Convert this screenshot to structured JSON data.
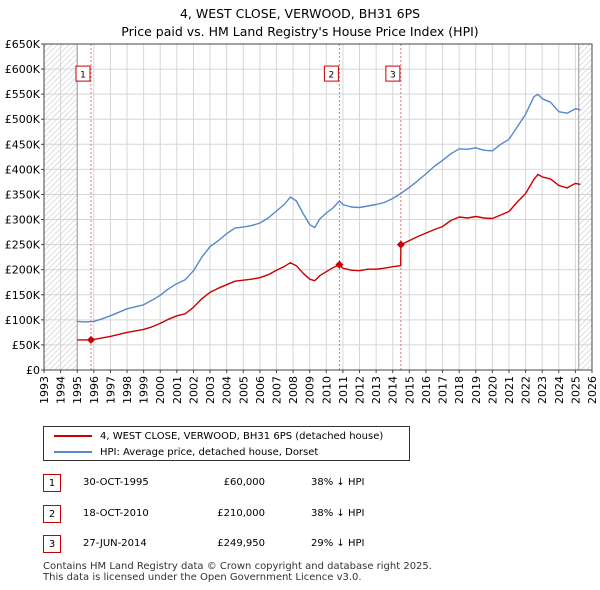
{
  "title_line1": "4, WEST CLOSE, VERWOOD, BH31 6PS",
  "title_line2": "Price paid vs. HM Land Registry's House Price Index (HPI)",
  "chart_data": {
    "type": "line",
    "title": "4, WEST CLOSE, VERWOOD, BH31 6PS — Price paid vs. HM Land Registry's House Price Index (HPI)",
    "xlim": [
      1993,
      2026
    ],
    "ylim": [
      0,
      650000
    ],
    "x_ticks": [
      1993,
      1994,
      1995,
      1996,
      1997,
      1998,
      1999,
      2000,
      2001,
      2002,
      2003,
      2004,
      2005,
      2006,
      2007,
      2008,
      2009,
      2010,
      2011,
      2012,
      2013,
      2014,
      2015,
      2016,
      2017,
      2018,
      2019,
      2020,
      2021,
      2022,
      2023,
      2024,
      2025,
      2026
    ],
    "y_ticks": [
      {
        "value": 0,
        "label": "£0"
      },
      {
        "value": 50000,
        "label": "£50K"
      },
      {
        "value": 100000,
        "label": "£100K"
      },
      {
        "value": 150000,
        "label": "£150K"
      },
      {
        "value": 200000,
        "label": "£200K"
      },
      {
        "value": 250000,
        "label": "£250K"
      },
      {
        "value": 300000,
        "label": "£300K"
      },
      {
        "value": 350000,
        "label": "£350K"
      },
      {
        "value": 400000,
        "label": "£400K"
      },
      {
        "value": 450000,
        "label": "£450K"
      },
      {
        "value": 500000,
        "label": "£500K"
      },
      {
        "value": 550000,
        "label": "£550K"
      },
      {
        "value": 600000,
        "label": "£600K"
      },
      {
        "value": 650000,
        "label": "£650K"
      }
    ],
    "hatched_ranges": [
      [
        1993,
        1995.0
      ],
      [
        2025.2,
        2026
      ]
    ],
    "series": [
      {
        "name": "4, WEST CLOSE, VERWOOD, BH31 6PS (detached house)",
        "color": "#cc0000",
        "points": [
          [
            1995.0,
            60000
          ],
          [
            1995.83,
            60000
          ],
          [
            1996.5,
            64000
          ],
          [
            1997.0,
            67000
          ],
          [
            1997.5,
            71000
          ],
          [
            1998.0,
            75000
          ],
          [
            1998.5,
            78000
          ],
          [
            1999.0,
            81000
          ],
          [
            1999.5,
            86000
          ],
          [
            2000.0,
            93000
          ],
          [
            2000.5,
            101000
          ],
          [
            2001.0,
            108000
          ],
          [
            2001.5,
            112000
          ],
          [
            2002.0,
            125000
          ],
          [
            2002.5,
            142000
          ],
          [
            2003.0,
            155000
          ],
          [
            2003.5,
            163000
          ],
          [
            2004.0,
            170000
          ],
          [
            2004.5,
            177000
          ],
          [
            2005.0,
            179000
          ],
          [
            2005.5,
            181000
          ],
          [
            2006.0,
            184000
          ],
          [
            2006.5,
            190000
          ],
          [
            2007.0,
            199000
          ],
          [
            2007.5,
            207000
          ],
          [
            2007.83,
            214000
          ],
          [
            2008.2,
            208000
          ],
          [
            2008.6,
            193000
          ],
          [
            2009.0,
            181000
          ],
          [
            2009.3,
            178000
          ],
          [
            2009.6,
            188000
          ],
          [
            2010.0,
            196000
          ],
          [
            2010.4,
            204000
          ],
          [
            2010.79,
            210000
          ],
          [
            2011.0,
            203000
          ],
          [
            2011.5,
            199000
          ],
          [
            2012.0,
            198000
          ],
          [
            2012.5,
            201000
          ],
          [
            2013.0,
            201000
          ],
          [
            2013.5,
            203000
          ],
          [
            2014.0,
            206000
          ],
          [
            2014.48,
            208000
          ],
          [
            2014.49,
            249950
          ],
          [
            2015.0,
            258000
          ],
          [
            2015.5,
            266000
          ],
          [
            2016.0,
            273000
          ],
          [
            2016.5,
            280000
          ],
          [
            2017.0,
            286000
          ],
          [
            2017.5,
            298000
          ],
          [
            2018.0,
            305000
          ],
          [
            2018.5,
            303000
          ],
          [
            2019.0,
            306000
          ],
          [
            2019.5,
            303000
          ],
          [
            2020.0,
            302000
          ],
          [
            2020.5,
            309000
          ],
          [
            2021.0,
            316000
          ],
          [
            2021.5,
            335000
          ],
          [
            2022.0,
            352000
          ],
          [
            2022.5,
            380000
          ],
          [
            2022.75,
            390000
          ],
          [
            2023.0,
            385000
          ],
          [
            2023.5,
            381000
          ],
          [
            2024.0,
            368000
          ],
          [
            2024.5,
            363000
          ],
          [
            2025.0,
            372000
          ],
          [
            2025.3,
            370000
          ]
        ]
      },
      {
        "name": "HPI: Average price, detached house, Dorset",
        "color": "#5588cc",
        "points": [
          [
            1995.0,
            97000
          ],
          [
            1995.5,
            96000
          ],
          [
            1996.0,
            97000
          ],
          [
            1996.5,
            102000
          ],
          [
            1997.0,
            108000
          ],
          [
            1997.5,
            115000
          ],
          [
            1998.0,
            122000
          ],
          [
            1998.5,
            126000
          ],
          [
            1999.0,
            130000
          ],
          [
            1999.5,
            139000
          ],
          [
            2000.0,
            149000
          ],
          [
            2000.5,
            162000
          ],
          [
            2001.0,
            172000
          ],
          [
            2001.5,
            180000
          ],
          [
            2002.0,
            198000
          ],
          [
            2002.5,
            225000
          ],
          [
            2003.0,
            246000
          ],
          [
            2003.5,
            258000
          ],
          [
            2004.0,
            272000
          ],
          [
            2004.5,
            283000
          ],
          [
            2005.0,
            285000
          ],
          [
            2005.5,
            288000
          ],
          [
            2006.0,
            293000
          ],
          [
            2006.5,
            303000
          ],
          [
            2007.0,
            317000
          ],
          [
            2007.5,
            331000
          ],
          [
            2007.83,
            345000
          ],
          [
            2008.2,
            337000
          ],
          [
            2008.6,
            312000
          ],
          [
            2009.0,
            290000
          ],
          [
            2009.3,
            284000
          ],
          [
            2009.6,
            301000
          ],
          [
            2010.0,
            313000
          ],
          [
            2010.4,
            323000
          ],
          [
            2010.79,
            337000
          ],
          [
            2011.0,
            330000
          ],
          [
            2011.5,
            325000
          ],
          [
            2012.0,
            324000
          ],
          [
            2012.5,
            327000
          ],
          [
            2013.0,
            330000
          ],
          [
            2013.5,
            334000
          ],
          [
            2014.0,
            342000
          ],
          [
            2014.48,
            352000
          ],
          [
            2015.0,
            364000
          ],
          [
            2015.5,
            377000
          ],
          [
            2016.0,
            391000
          ],
          [
            2016.5,
            406000
          ],
          [
            2017.0,
            418000
          ],
          [
            2017.5,
            431000
          ],
          [
            2018.0,
            441000
          ],
          [
            2018.5,
            440000
          ],
          [
            2019.0,
            443000
          ],
          [
            2019.5,
            438000
          ],
          [
            2020.0,
            437000
          ],
          [
            2020.5,
            450000
          ],
          [
            2021.0,
            460000
          ],
          [
            2021.5,
            485000
          ],
          [
            2022.0,
            510000
          ],
          [
            2022.5,
            545000
          ],
          [
            2022.75,
            550000
          ],
          [
            2023.0,
            541000
          ],
          [
            2023.5,
            534000
          ],
          [
            2024.0,
            515000
          ],
          [
            2024.5,
            512000
          ],
          [
            2025.0,
            521000
          ],
          [
            2025.3,
            519000
          ]
        ]
      }
    ],
    "sales": [
      {
        "label": "1",
        "x": 1995.83,
        "y": 60000
      },
      {
        "label": "2",
        "x": 2010.79,
        "y": 210000
      },
      {
        "label": "3",
        "x": 2014.49,
        "y": 249950
      }
    ],
    "marker_label_value": 590000
  },
  "legend": {
    "items": [
      {
        "label": "4, WEST CLOSE, VERWOOD, BH31 6PS (detached house)",
        "color": "#cc0000"
      },
      {
        "label": "HPI: Average price, detached house, Dorset",
        "color": "#5588cc"
      }
    ]
  },
  "transactions": [
    {
      "num": "1",
      "date": "30-OCT-1995",
      "price": "£60,000",
      "hpi": "38% ↓ HPI"
    },
    {
      "num": "2",
      "date": "18-OCT-2010",
      "price": "£210,000",
      "hpi": "38% ↓ HPI"
    },
    {
      "num": "3",
      "date": "27-JUN-2014",
      "price": "£249,950",
      "hpi": "29% ↓ HPI"
    }
  ],
  "footer": {
    "line1": "Contains HM Land Registry data © Crown copyright and database right 2025.",
    "line2": "This data is licensed under the Open Government Licence v3.0."
  }
}
